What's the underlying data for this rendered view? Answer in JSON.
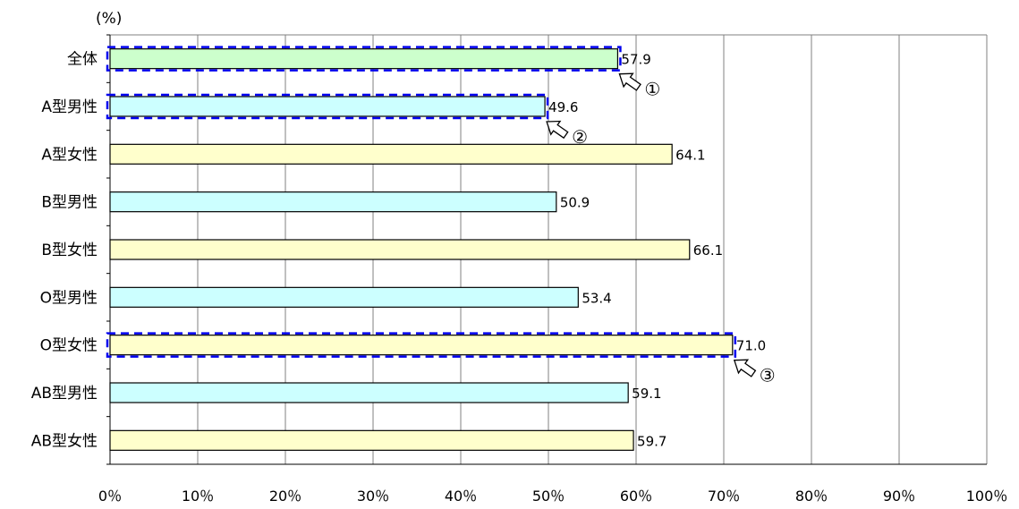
{
  "chart_data": {
    "type": "bar",
    "orientation": "horizontal",
    "unit_label": "(%)",
    "categories": [
      "全体",
      "A型男性",
      "A型女性",
      "B型男性",
      "B型女性",
      "O型男性",
      "O型女性",
      "AB型男性",
      "AB型女性"
    ],
    "values": [
      57.9,
      49.6,
      64.1,
      50.9,
      66.1,
      53.4,
      71.0,
      59.1,
      59.7
    ],
    "value_labels": [
      "57.9",
      "49.6",
      "64.1",
      "50.9",
      "66.1",
      "53.4",
      "71.0",
      "59.1",
      "59.7"
    ],
    "xlim": [
      0,
      100
    ],
    "x_ticks": [
      0,
      10,
      20,
      30,
      40,
      50,
      60,
      70,
      80,
      90,
      100
    ],
    "x_tick_labels": [
      "0％",
      "10％",
      "20％",
      "30％",
      "40％",
      "50％",
      "60％",
      "70％",
      "80％",
      "90％",
      "100％"
    ],
    "grid": "vertical",
    "legend": "none",
    "colors": {
      "male": "#ccffff",
      "female": "#ffffcc",
      "overall": "#ccffcc",
      "highlight": "#0000ee",
      "grid": "#808080"
    },
    "annotations": [
      {
        "label": "①",
        "category": "全体"
      },
      {
        "label": "②",
        "category": "A型男性"
      },
      {
        "label": "③",
        "category": "O型女性"
      }
    ]
  }
}
